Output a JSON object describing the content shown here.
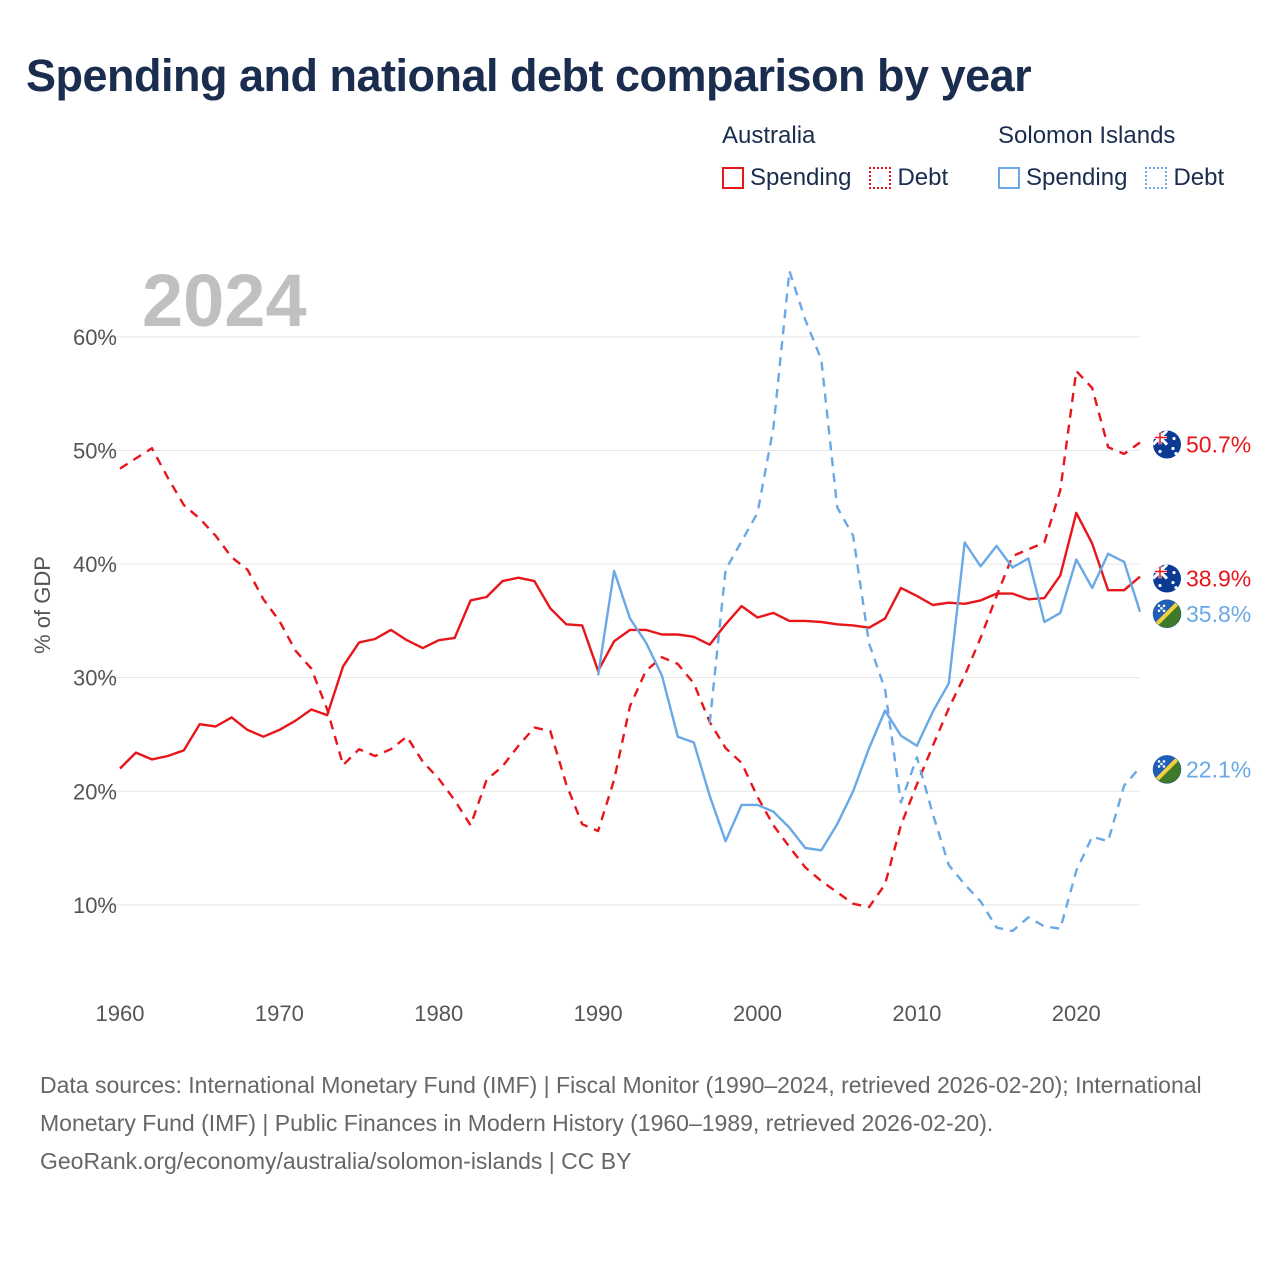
{
  "title": "Spending and national debt comparison by year",
  "year_label": "2024",
  "legend": {
    "groups": [
      {
        "country": "Australia",
        "spending_label": "Spending",
        "debt_label": "Debt",
        "color": "#e8161b"
      },
      {
        "country": "Solomon Islands",
        "spending_label": "Spending",
        "debt_label": "Debt",
        "color": "#6aa8e6"
      }
    ]
  },
  "footer": {
    "sources": "Data sources: International Monetary Fund (IMF) | Fiscal Monitor (1990–2024, retrieved 2026-02-20); International Monetary Fund (IMF) | Public Finances in Modern History (1960–1989, retrieved 2026-02-20).",
    "credit": "GeoRank.org/economy/australia/solomon-islands | CC BY"
  },
  "chart_data": {
    "type": "line",
    "ylabel": "% of GDP",
    "xlabel": "",
    "xlim": [
      1960,
      2024
    ],
    "ylim": [
      4,
      68
    ],
    "x_ticks": [
      1960,
      1970,
      1980,
      1990,
      2000,
      2010,
      2020
    ],
    "y_ticks": [
      10,
      20,
      30,
      40,
      50,
      60
    ],
    "y_tick_labels": [
      "10%",
      "20%",
      "30%",
      "40%",
      "50%",
      "60%"
    ],
    "grid": true,
    "end_labels": [
      "50.7%",
      "38.9%",
      "35.8%",
      "22.1%"
    ],
    "series": [
      {
        "name": "Australia Spending",
        "country": "Australia",
        "metric": "Spending",
        "color": "#e8161b",
        "dash": "",
        "end_label": "38.9%",
        "start_year": 1960,
        "values": [
          22.0,
          23.4,
          22.8,
          23.1,
          23.6,
          25.9,
          25.7,
          26.5,
          25.4,
          24.8,
          25.4,
          26.2,
          27.2,
          26.7,
          31.0,
          33.1,
          33.4,
          34.2,
          33.3,
          32.6,
          33.3,
          33.5,
          36.8,
          37.1,
          38.5,
          38.8,
          38.5,
          36.1,
          34.7,
          34.6,
          30.6,
          33.2,
          34.2,
          34.2,
          33.8,
          33.8,
          33.6,
          32.9,
          34.7,
          36.3,
          35.3,
          35.7,
          35.0,
          35.0,
          34.9,
          34.7,
          34.6,
          34.4,
          35.2,
          37.9,
          37.2,
          36.4,
          36.6,
          36.5,
          36.8,
          37.4,
          37.4,
          36.9,
          37.0,
          39.0,
          44.5,
          41.8,
          37.7,
          37.7,
          38.9
        ]
      },
      {
        "name": "Australia Debt",
        "country": "Australia",
        "metric": "Debt",
        "color": "#e8161b",
        "dash": "9,7",
        "end_label": "50.7%",
        "start_year": 1960,
        "values": [
          48.4,
          49.3,
          50.2,
          47.6,
          45.2,
          44.0,
          42.5,
          40.6,
          39.5,
          36.9,
          35.0,
          32.4,
          30.8,
          27.2,
          22.3,
          23.7,
          23.1,
          23.7,
          24.8,
          22.6,
          21.1,
          19.2,
          17.0,
          21.0,
          22.2,
          24.0,
          25.6,
          25.3,
          20.6,
          17.1,
          16.5,
          21.0,
          27.5,
          30.6,
          31.8,
          31.2,
          29.5,
          26.1,
          23.8,
          22.5,
          19.5,
          17.0,
          15.1,
          13.3,
          12.1,
          11.1,
          10.1,
          9.8,
          11.8,
          17.0,
          20.6,
          24.0,
          27.3,
          30.2,
          33.5,
          37.2,
          40.7,
          41.3,
          41.9,
          46.5,
          57.0,
          55.5,
          50.3,
          49.7,
          50.7
        ]
      },
      {
        "name": "Solomon Islands Spending",
        "country": "Solomon Islands",
        "metric": "Spending",
        "color": "#6aa8e6",
        "dash": "",
        "end_label": "35.8%",
        "start_year": 1990,
        "values": [
          30.2,
          39.4,
          35.2,
          33.1,
          30.2,
          24.8,
          24.3,
          19.6,
          15.6,
          18.8,
          18.8,
          18.2,
          16.8,
          15.0,
          14.8,
          17.1,
          20.0,
          23.8,
          27.1,
          24.9,
          24.0,
          27.0,
          29.5,
          41.9,
          39.8,
          41.6,
          39.7,
          40.5,
          34.9,
          35.7,
          40.4,
          37.9,
          40.9,
          40.2,
          35.8
        ]
      },
      {
        "name": "Solomon Islands Debt",
        "country": "Solomon Islands",
        "metric": "Debt",
        "color": "#6aa8e6",
        "dash": "9,7",
        "end_label": "22.1%",
        "start_year": 1997,
        "values": [
          26.0,
          39.5,
          42.0,
          44.5,
          52.0,
          65.8,
          61.5,
          58.0,
          45.0,
          42.5,
          33.0,
          29.0,
          19.0,
          23.0,
          18.0,
          13.5,
          11.8,
          10.3,
          8.0,
          7.7,
          8.9,
          8.1,
          7.9,
          13.0,
          16.0,
          15.6,
          20.5,
          22.1
        ]
      }
    ]
  }
}
